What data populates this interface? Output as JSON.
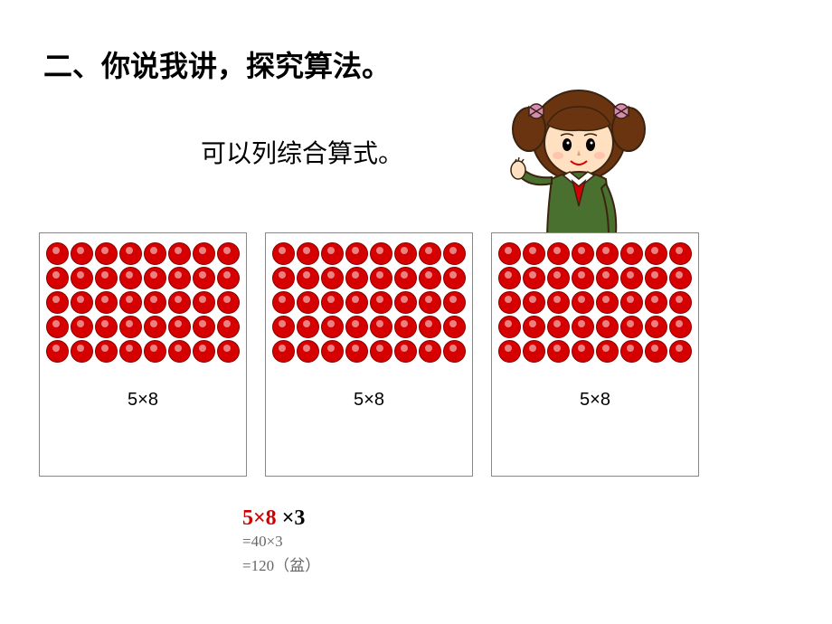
{
  "title": "二、你说我讲，探究算法。",
  "hint": "可以列综合算式。",
  "panel": {
    "rows": 5,
    "cols": 8,
    "dot_color": "#d60000",
    "dot_border": "#8b0000",
    "label": "5×8"
  },
  "panel_count": 3,
  "girl": {
    "hair_color": "#6b3410",
    "skin_color": "#ffe0c0",
    "shirt_color": "#4a7030",
    "collar_color": "#ffffff",
    "scarf_color": "#d60000",
    "bow_color": "#d68bb5",
    "outline": "#3a2410"
  },
  "calc": {
    "expr_red": "5×8",
    "expr_black": " ×3",
    "step1": "=40×3",
    "step2": "=120（盆）"
  }
}
